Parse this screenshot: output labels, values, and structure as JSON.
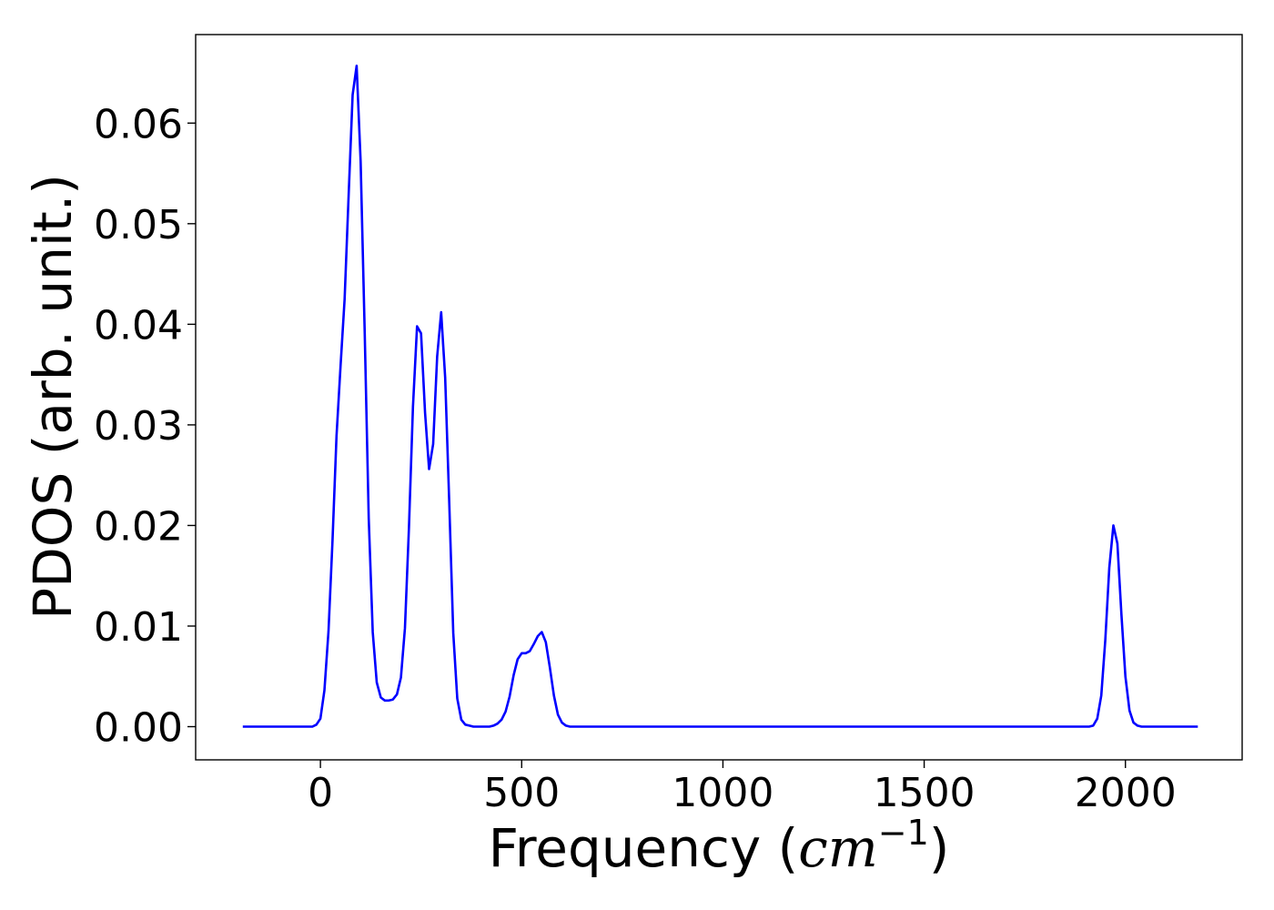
{
  "chart_data": {
    "type": "line",
    "title": "",
    "xlabel_prefix": "Frequency (",
    "xlabel_var": "cm",
    "xlabel_sup": "−1",
    "xlabel_suffix": ")",
    "ylabel": "PDOS (arb. unit.)",
    "xlim": [
      -310,
      2290
    ],
    "ylim": [
      -0.0033,
      0.0688
    ],
    "xticks": [
      0,
      500,
      1000,
      1500,
      2000
    ],
    "xtick_labels": [
      "0",
      "500",
      "1000",
      "1500",
      "2000"
    ],
    "yticks": [
      0.0,
      0.01,
      0.02,
      0.03,
      0.04,
      0.05,
      0.06
    ],
    "ytick_labels": [
      "0.00",
      "0.01",
      "0.02",
      "0.03",
      "0.04",
      "0.05",
      "0.06"
    ],
    "grid": false,
    "legend": "none",
    "series": [
      {
        "color": "#0000ff",
        "x": [
          -193,
          -20,
          -10,
          0,
          10,
          20,
          30,
          40,
          50,
          60,
          70,
          80,
          90,
          100,
          110,
          120,
          130,
          140,
          150,
          160,
          170,
          180,
          190,
          200,
          210,
          220,
          230,
          240,
          250,
          260,
          270,
          280,
          290,
          300,
          310,
          320,
          330,
          340,
          350,
          360,
          370,
          380,
          390,
          400,
          410,
          420,
          430,
          440,
          450,
          460,
          470,
          480,
          490,
          500,
          510,
          520,
          530,
          540,
          550,
          560,
          570,
          580,
          590,
          600,
          610,
          620,
          630,
          640,
          650,
          660,
          670,
          680,
          690,
          700,
          710,
          720,
          1910,
          1920,
          1930,
          1940,
          1950,
          1960,
          1970,
          1980,
          1990,
          2000,
          2010,
          2020,
          2030,
          2040,
          2050,
          2060,
          2180
        ],
        "values": [
          0.0,
          0.0,
          0.0002,
          0.0008,
          0.0036,
          0.0095,
          0.0185,
          0.0289,
          0.0358,
          0.0425,
          0.0528,
          0.0628,
          0.0657,
          0.0562,
          0.0391,
          0.0207,
          0.0094,
          0.0044,
          0.0029,
          0.0026,
          0.0026,
          0.0027,
          0.0032,
          0.0049,
          0.0098,
          0.0198,
          0.0318,
          0.0398,
          0.0391,
          0.0312,
          0.0256,
          0.0281,
          0.0368,
          0.0412,
          0.0347,
          0.0222,
          0.0093,
          0.0028,
          0.0007,
          0.0002,
          0.0001,
          0.0,
          0.0,
          0.0,
          0.0,
          0.0,
          0.0001,
          0.0003,
          0.0007,
          0.0015,
          0.003,
          0.0051,
          0.0067,
          0.0073,
          0.0073,
          0.0075,
          0.0082,
          0.009,
          0.0094,
          0.0084,
          0.0059,
          0.0031,
          0.0012,
          0.0004,
          0.0001,
          0.0,
          0.0,
          0.0,
          0.0,
          0.0,
          0.0,
          0.0,
          0.0,
          0.0,
          0.0,
          0.0,
          0.0,
          0.0001,
          0.0008,
          0.0031,
          0.0086,
          0.0158,
          0.02,
          0.0182,
          0.0112,
          0.005,
          0.0016,
          0.0004,
          0.0001,
          0.0,
          0.0,
          0.0,
          0.0
        ]
      }
    ]
  }
}
